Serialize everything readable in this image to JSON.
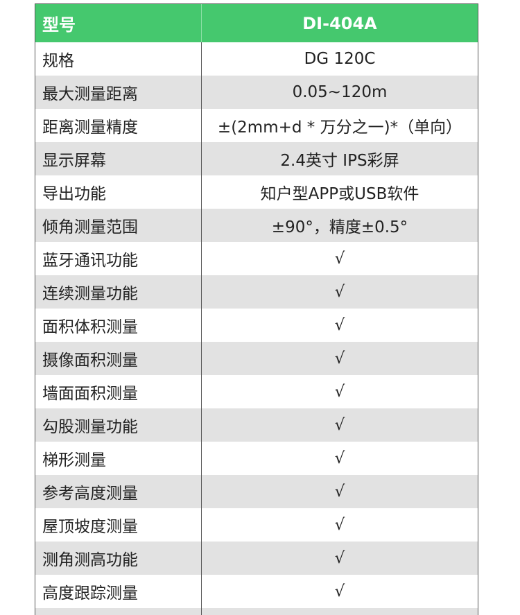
{
  "header": {
    "label": "型号",
    "value": "DI-404A"
  },
  "colors": {
    "header_bg": "#45c86e",
    "stripe": "#e2e2e2"
  },
  "rows": [
    {
      "label": "规格",
      "value": "DG 120C"
    },
    {
      "label": "最大测量距离",
      "value": "0.05~120m"
    },
    {
      "label": "距离测量精度",
      "value": "±(2mm+d * 万分之一)*（单向）"
    },
    {
      "label": "显示屏幕",
      "value": "2.4英寸 IPS彩屏"
    },
    {
      "label": "导出功能",
      "value": "知户型APP或USB软件"
    },
    {
      "label": "倾角测量范围",
      "value": "±90°，精度±0.5°"
    },
    {
      "label": "蓝牙通讯功能",
      "value": "√"
    },
    {
      "label": "连续测量功能",
      "value": "√"
    },
    {
      "label": "面积体积测量",
      "value": "√"
    },
    {
      "label": "摄像面积测量",
      "value": "√"
    },
    {
      "label": "墙面面积测量",
      "value": "√"
    },
    {
      "label": "勾股测量功能",
      "value": "√"
    },
    {
      "label": "梯形测量",
      "value": "√"
    },
    {
      "label": "参考高度测量",
      "value": "√"
    },
    {
      "label": "屋顶坡度测量",
      "value": "√"
    },
    {
      "label": "测角测高功能",
      "value": "√"
    },
    {
      "label": "高度跟踪测量",
      "value": "√"
    }
  ]
}
